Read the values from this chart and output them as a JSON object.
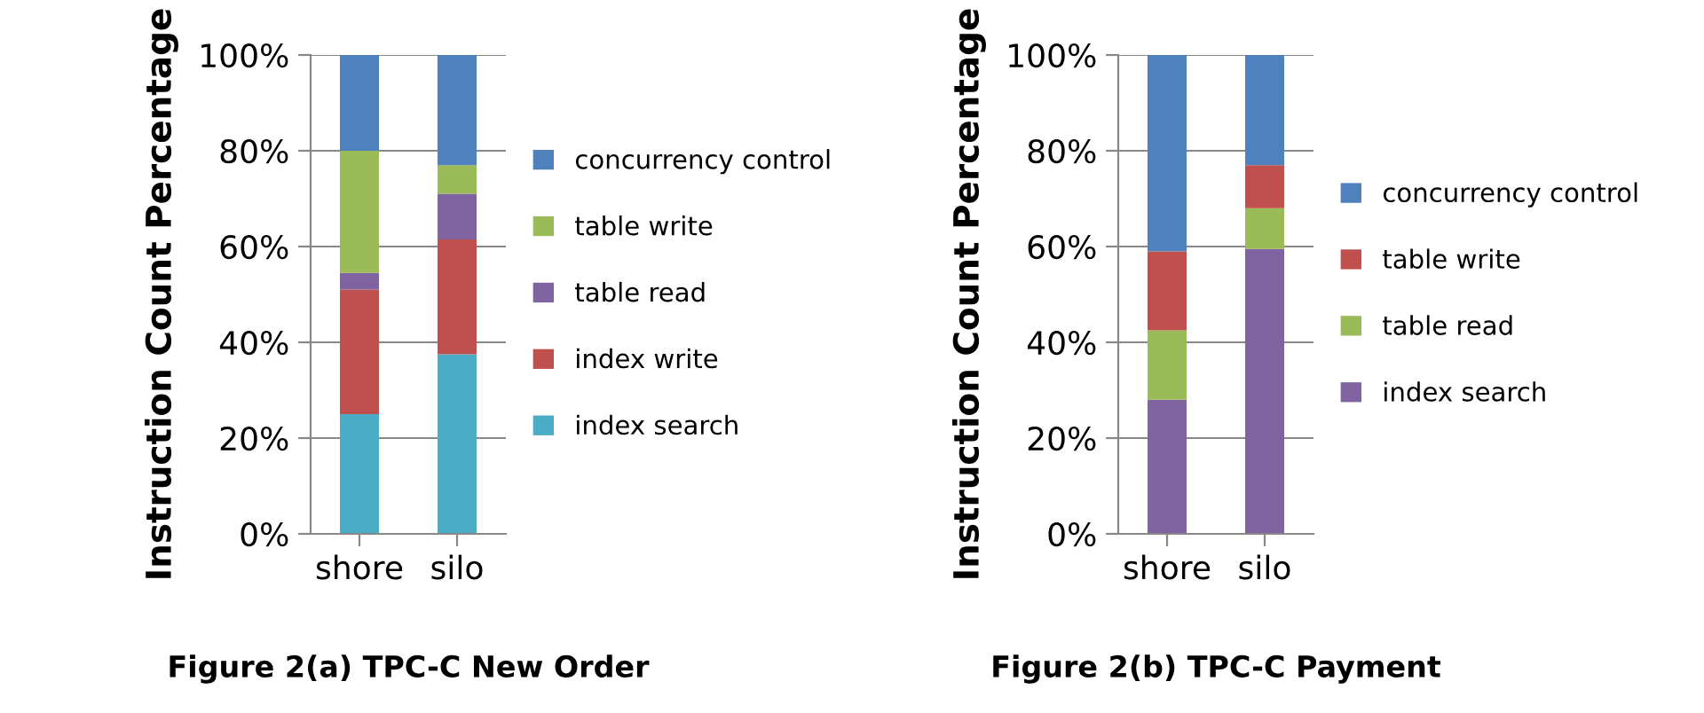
{
  "chart_data": [
    {
      "type": "bar",
      "stacked": true,
      "title": "Figure 2(a) TPC-C New Order",
      "ylabel": "Instruction Count Percentage",
      "categories": [
        "shore",
        "silo"
      ],
      "ylim": [
        0,
        100
      ],
      "yticks": [
        {
          "value": 0,
          "label": "0%"
        },
        {
          "value": 20,
          "label": "20%"
        },
        {
          "value": 40,
          "label": "40%"
        },
        {
          "value": 60,
          "label": "60%"
        },
        {
          "value": 80,
          "label": "80%"
        },
        {
          "value": 100,
          "label": "100%"
        }
      ],
      "grid": "y",
      "legend": "right",
      "series": [
        {
          "name": "index search",
          "color": "#4bacc6",
          "values": [
            25,
            37.5
          ]
        },
        {
          "name": "index write",
          "color": "#c0504d",
          "values": [
            26,
            24
          ]
        },
        {
          "name": "table read",
          "color": "#8064a2",
          "values": [
            3.5,
            9.5
          ]
        },
        {
          "name": "table write",
          "color": "#9bbb59",
          "values": [
            25.5,
            6
          ]
        },
        {
          "name": "concurrency control",
          "color": "#4f81bd",
          "values": [
            20,
            23
          ]
        }
      ]
    },
    {
      "type": "bar",
      "stacked": true,
      "title": "Figure 2(b) TPC-C Payment",
      "ylabel": "Instruction Count Percentage",
      "categories": [
        "shore",
        "silo"
      ],
      "ylim": [
        0,
        100
      ],
      "yticks": [
        {
          "value": 0,
          "label": "0%"
        },
        {
          "value": 20,
          "label": "20%"
        },
        {
          "value": 40,
          "label": "40%"
        },
        {
          "value": 60,
          "label": "60%"
        },
        {
          "value": 80,
          "label": "80%"
        },
        {
          "value": 100,
          "label": "100%"
        }
      ],
      "grid": "y",
      "legend": "right",
      "series": [
        {
          "name": "index search",
          "color": "#8064a2",
          "values": [
            28,
            59.5
          ]
        },
        {
          "name": "table read",
          "color": "#9bbb59",
          "values": [
            14.5,
            8.5
          ]
        },
        {
          "name": "table write",
          "color": "#c0504d",
          "values": [
            16.5,
            9
          ]
        },
        {
          "name": "concurrency control",
          "color": "#4f81bd",
          "values": [
            41,
            23
          ]
        }
      ]
    }
  ]
}
